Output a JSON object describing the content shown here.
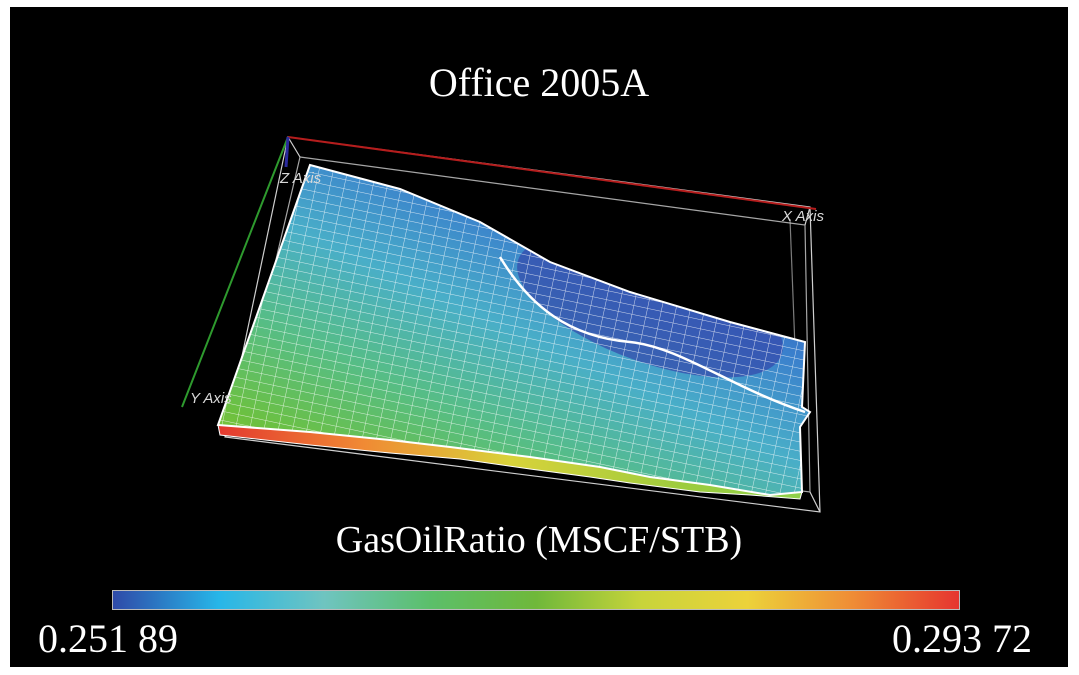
{
  "title": "Office 2005A",
  "axes": {
    "x_label": "X Axis",
    "y_label": "Y Axis",
    "z_label": "Z Axis",
    "x_color": "#b51d1d",
    "y_color": "#2e9a2e",
    "z_color": "#2a2a9e"
  },
  "property": {
    "label": "GasOilRatio (MSCF/STB)",
    "min": "0.251 89",
    "max": "0.293 72",
    "colormap": [
      "#2f4aa8",
      "#27b6e8",
      "#6fc4c0",
      "#5bbf6a",
      "#6fb83a",
      "#c8d43a",
      "#ecd23a",
      "#ef8c35",
      "#e6352f"
    ]
  }
}
